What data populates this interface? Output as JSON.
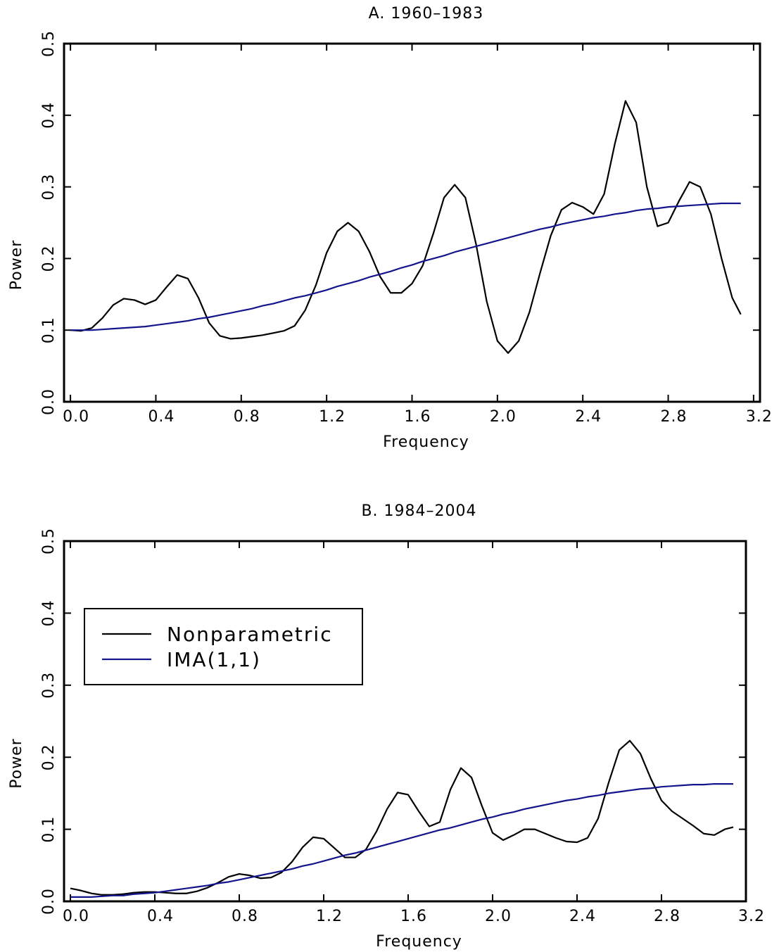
{
  "chart_data": [
    {
      "type": "line",
      "title": "A. 1960–1983",
      "xlabel": "Frequency",
      "ylabel": "Power",
      "x": [
        0,
        0.05,
        0.1,
        0.15,
        0.2,
        0.25,
        0.3,
        0.35,
        0.4,
        0.45,
        0.5,
        0.55,
        0.6,
        0.65,
        0.7,
        0.75,
        0.8,
        0.85,
        0.9,
        0.95,
        1.0,
        1.05,
        1.1,
        1.15,
        1.2,
        1.25,
        1.3,
        1.35,
        1.4,
        1.45,
        1.5,
        1.55,
        1.6,
        1.65,
        1.7,
        1.75,
        1.8,
        1.85,
        1.9,
        1.95,
        2.0,
        2.05,
        2.1,
        2.15,
        2.2,
        2.25,
        2.3,
        2.35,
        2.4,
        2.45,
        2.5,
        2.55,
        2.6,
        2.65,
        2.7,
        2.75,
        2.8,
        2.85,
        2.9,
        2.95,
        3.0,
        3.05,
        3.1,
        3.14
      ],
      "series": [
        {
          "color": "#000000",
          "values": [
            0.1,
            0.099,
            0.103,
            0.117,
            0.135,
            0.144,
            0.142,
            0.136,
            0.142,
            0.16,
            0.177,
            0.172,
            0.145,
            0.11,
            0.092,
            0.088,
            0.089,
            0.091,
            0.093,
            0.096,
            0.099,
            0.106,
            0.128,
            0.163,
            0.208,
            0.238,
            0.25,
            0.238,
            0.21,
            0.175,
            0.152,
            0.152,
            0.165,
            0.19,
            0.235,
            0.285,
            0.303,
            0.285,
            0.22,
            0.14,
            0.085,
            0.068,
            0.085,
            0.125,
            0.18,
            0.232,
            0.268,
            0.278,
            0.272,
            0.262,
            0.29,
            0.36,
            0.42,
            0.39,
            0.3,
            0.245,
            0.25,
            0.28,
            0.307,
            0.3,
            0.262,
            0.2,
            0.145,
            0.122
          ]
        },
        {
          "color": "#14148c",
          "values": [
            0.1,
            0.1,
            0.1,
            0.101,
            0.102,
            0.103,
            0.104,
            0.105,
            0.107,
            0.109,
            0.111,
            0.113,
            0.116,
            0.118,
            0.121,
            0.124,
            0.127,
            0.13,
            0.134,
            0.137,
            0.141,
            0.145,
            0.148,
            0.152,
            0.156,
            0.161,
            0.165,
            0.169,
            0.174,
            0.178,
            0.182,
            0.187,
            0.191,
            0.196,
            0.2,
            0.204,
            0.209,
            0.213,
            0.217,
            0.221,
            0.225,
            0.229,
            0.233,
            0.237,
            0.241,
            0.244,
            0.248,
            0.251,
            0.254,
            0.257,
            0.259,
            0.262,
            0.264,
            0.267,
            0.269,
            0.27,
            0.272,
            0.273,
            0.274,
            0.275,
            0.276,
            0.277,
            0.277,
            0.277
          ]
        }
      ],
      "xlim": [
        -0.03,
        3.23
      ],
      "ylim": [
        0,
        0.5
      ],
      "xticks": [
        {
          "value": 0,
          "label": "0.0"
        },
        0.4,
        0.8,
        1.2,
        1.6,
        {
          "value": 2,
          "label": "2.0"
        },
        2.4,
        2.8,
        3.2
      ],
      "yticks": [
        {
          "value": 0,
          "label": "0.0"
        },
        0.1,
        0.2,
        0.3,
        0.4,
        0.5
      ]
    },
    {
      "type": "line",
      "title": "B. 1984–2004",
      "xlabel": "Frequency",
      "ylabel": "Power",
      "x": [
        0,
        0.05,
        0.1,
        0.15,
        0.2,
        0.25,
        0.3,
        0.35,
        0.4,
        0.45,
        0.5,
        0.55,
        0.6,
        0.65,
        0.7,
        0.75,
        0.8,
        0.85,
        0.9,
        0.95,
        1.0,
        1.05,
        1.1,
        1.15,
        1.2,
        1.25,
        1.3,
        1.35,
        1.4,
        1.45,
        1.5,
        1.55,
        1.6,
        1.65,
        1.7,
        1.75,
        1.8,
        1.85,
        1.9,
        1.95,
        2.0,
        2.05,
        2.1,
        2.15,
        2.2,
        2.25,
        2.3,
        2.35,
        2.4,
        2.45,
        2.5,
        2.55,
        2.6,
        2.65,
        2.7,
        2.75,
        2.8,
        2.85,
        2.9,
        2.95,
        3.0,
        3.05,
        3.1,
        3.14
      ],
      "series": [
        {
          "name": "Nonparametric",
          "color": "#000000",
          "values": [
            0.018,
            0.015,
            0.011,
            0.009,
            0.009,
            0.01,
            0.012,
            0.013,
            0.013,
            0.012,
            0.011,
            0.011,
            0.014,
            0.019,
            0.026,
            0.034,
            0.038,
            0.036,
            0.032,
            0.033,
            0.04,
            0.055,
            0.075,
            0.089,
            0.087,
            0.074,
            0.061,
            0.061,
            0.072,
            0.097,
            0.128,
            0.151,
            0.148,
            0.125,
            0.104,
            0.11,
            0.155,
            0.185,
            0.172,
            0.132,
            0.095,
            0.085,
            0.092,
            0.1,
            0.1,
            0.094,
            0.088,
            0.083,
            0.082,
            0.088,
            0.115,
            0.165,
            0.21,
            0.223,
            0.205,
            0.17,
            0.14,
            0.125,
            0.115,
            0.105,
            0.094,
            0.092,
            0.1,
            0.103
          ]
        },
        {
          "name": "IMA(1,1)",
          "color": "#14148c",
          "values": [
            0.006,
            0.006,
            0.006,
            0.007,
            0.008,
            0.008,
            0.01,
            0.011,
            0.012,
            0.014,
            0.016,
            0.018,
            0.02,
            0.022,
            0.025,
            0.027,
            0.03,
            0.033,
            0.036,
            0.039,
            0.042,
            0.045,
            0.049,
            0.052,
            0.056,
            0.06,
            0.064,
            0.067,
            0.071,
            0.075,
            0.079,
            0.083,
            0.087,
            0.091,
            0.095,
            0.099,
            0.102,
            0.106,
            0.11,
            0.114,
            0.117,
            0.121,
            0.124,
            0.128,
            0.131,
            0.134,
            0.137,
            0.14,
            0.142,
            0.145,
            0.147,
            0.15,
            0.152,
            0.154,
            0.156,
            0.157,
            0.159,
            0.16,
            0.161,
            0.162,
            0.162,
            0.163,
            0.163,
            0.163
          ]
        }
      ],
      "xlim": [
        -0.03,
        3.2
      ],
      "ylim": [
        0,
        0.5
      ],
      "xticks": [
        {
          "value": 0,
          "label": "0.0"
        },
        0.4,
        0.8,
        1.2,
        1.6,
        {
          "value": 2,
          "label": "2.0"
        },
        2.4,
        2.8,
        3.2
      ],
      "yticks": [
        {
          "value": 0,
          "label": "0.0"
        },
        0.1,
        0.2,
        0.3,
        0.4,
        0.5
      ],
      "legend": "upper left"
    }
  ]
}
